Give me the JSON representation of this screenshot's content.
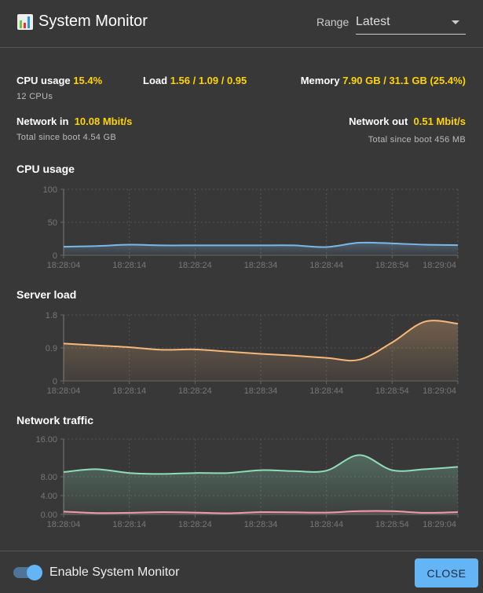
{
  "header": {
    "title": "System Monitor",
    "icon": "bar-chart-icon",
    "range_label": "Range",
    "range_value": "Latest"
  },
  "stats": {
    "cpu_label": "CPU usage",
    "cpu_value": "15.4%",
    "cpu_sub": "12 CPUs",
    "load_label": "Load",
    "load_value": "1.56 / 1.09 / 0.95",
    "memory_label": "Memory",
    "memory_value": "7.90 GB / 31.1 GB (25.4%)",
    "net_in_label": "Network in",
    "net_in_value": "10.08 Mbit/s",
    "net_in_sub": "Total since boot 4.54 GB",
    "net_out_label": "Network out",
    "net_out_value": "0.51 Mbit/s",
    "net_out_sub": "Total since boot 456 MB"
  },
  "colors": {
    "accent": "#ffd400",
    "cpu": "#7ab8e8",
    "load": "#f5b77a",
    "net_in": "#8fdcb8",
    "net_out": "#f29aa8",
    "button": "#64b5f6"
  },
  "chart_data": [
    {
      "type": "area",
      "title": "CPU usage",
      "x": [
        "18:28:04",
        "18:28:09",
        "18:28:14",
        "18:28:19",
        "18:28:24",
        "18:28:29",
        "18:28:34",
        "18:28:39",
        "18:28:44",
        "18:28:49",
        "18:28:54",
        "18:28:59",
        "18:29:04"
      ],
      "xticks": [
        "18:28:04",
        "18:28:14",
        "18:28:24",
        "18:28:34",
        "18:28:44",
        "18:28:54",
        "18:29:04"
      ],
      "yticks": [
        "100",
        "50",
        "0"
      ],
      "ylim": [
        0,
        100
      ],
      "grid": true,
      "series": [
        {
          "values": [
            13,
            14,
            16,
            15,
            15,
            15,
            15,
            15,
            12.5,
            19,
            18,
            16,
            15.4
          ],
          "color": "#7ab8e8"
        }
      ]
    },
    {
      "type": "area",
      "title": "Server load",
      "x": [
        "18:28:04",
        "18:28:09",
        "18:28:14",
        "18:28:19",
        "18:28:24",
        "18:28:29",
        "18:28:34",
        "18:28:39",
        "18:28:44",
        "18:28:49",
        "18:28:54",
        "18:28:59",
        "18:29:04"
      ],
      "xticks": [
        "18:28:04",
        "18:28:14",
        "18:28:24",
        "18:28:34",
        "18:28:44",
        "18:28:54",
        "18:29:04"
      ],
      "yticks": [
        "1.8",
        "0.9",
        "0"
      ],
      "ylim": [
        0,
        1.8
      ],
      "grid": true,
      "series": [
        {
          "values": [
            1.02,
            0.97,
            0.92,
            0.85,
            0.86,
            0.8,
            0.74,
            0.69,
            0.63,
            0.58,
            1.05,
            1.62,
            1.56
          ],
          "color": "#f5b77a"
        }
      ]
    },
    {
      "type": "area",
      "title": "Network traffic",
      "x": [
        "18:28:04",
        "18:28:09",
        "18:28:14",
        "18:28:19",
        "18:28:24",
        "18:28:29",
        "18:28:34",
        "18:28:39",
        "18:28:44",
        "18:28:49",
        "18:28:54",
        "18:28:59",
        "18:29:04"
      ],
      "xticks": [
        "18:28:04",
        "18:28:14",
        "18:28:24",
        "18:28:34",
        "18:28:44",
        "18:28:54",
        "18:29:04"
      ],
      "yticks": [
        "16.00",
        "8.00",
        "4.00",
        "0.00"
      ],
      "ylim": [
        0,
        16
      ],
      "grid": true,
      "series": [
        {
          "values": [
            9,
            9.6,
            8.8,
            8.6,
            8.8,
            8.8,
            9.4,
            9.2,
            9.3,
            12.6,
            9.4,
            9.6,
            10.1
          ],
          "color": "#8fdcb8"
        },
        {
          "values": [
            0.6,
            0.3,
            0.35,
            0.5,
            0.4,
            0.25,
            0.5,
            0.45,
            0.4,
            0.7,
            0.7,
            0.35,
            0.51
          ],
          "color": "#f29aa8"
        }
      ]
    }
  ],
  "footer": {
    "toggle_label": "Enable System Monitor",
    "toggle_on": true,
    "close_label": "CLOSE"
  }
}
